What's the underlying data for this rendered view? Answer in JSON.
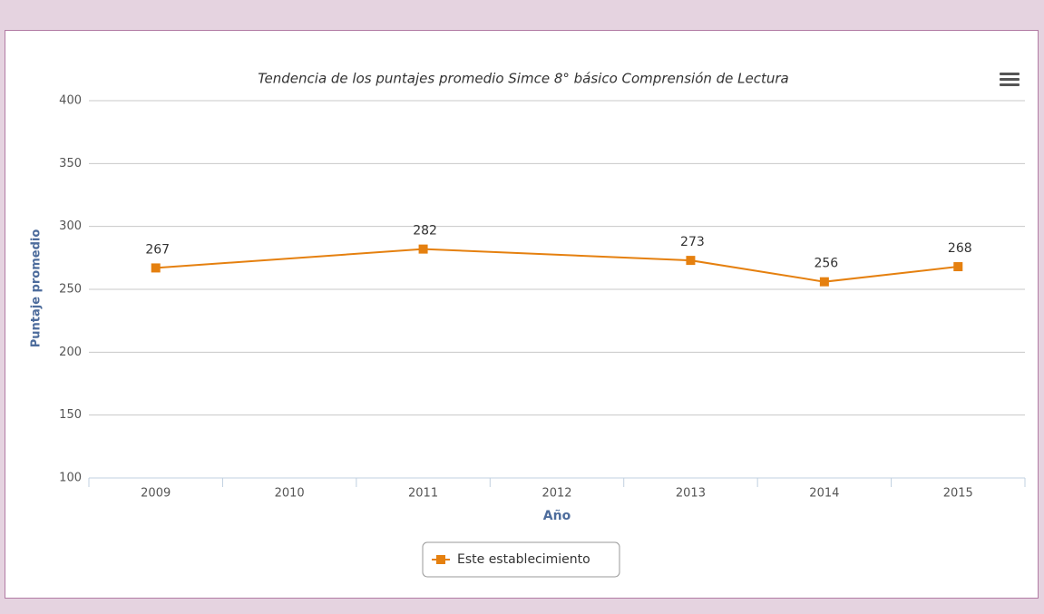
{
  "chart_data": {
    "type": "line",
    "title": "Tendencia de los puntajes promedio Simce 8° básico Comprensión de Lectura",
    "x_label": "Año",
    "y_label": "Puntaje promedio",
    "categories": [
      "2009",
      "2010",
      "2011",
      "2012",
      "2013",
      "2014",
      "2015"
    ],
    "series": [
      {
        "name": "Este establecimiento",
        "color": "#e5800f",
        "values": [
          267,
          null,
          282,
          null,
          273,
          256,
          268
        ]
      }
    ],
    "ylim": [
      100,
      400
    ],
    "yticks": [
      100,
      150,
      200,
      250,
      300,
      350,
      400
    ],
    "grid": true,
    "connect_nulls": true,
    "data_labels": true,
    "legend": "bottom"
  }
}
